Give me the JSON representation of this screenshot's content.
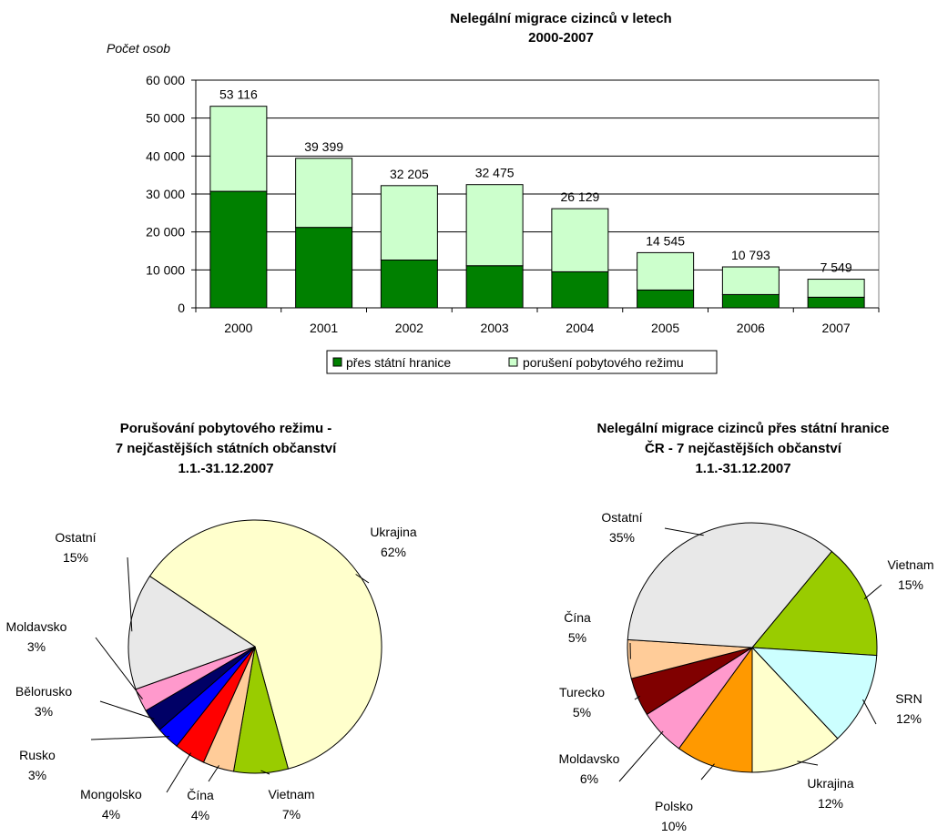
{
  "chart_data": [
    {
      "type": "bar",
      "stacked": true,
      "title": [
        "Nelegální migrace cizinců v letech",
        "2000-2007"
      ],
      "ylabel": "Počet osob",
      "ylim": [
        0,
        60000
      ],
      "yticks": [
        "0",
        "10 000",
        "20 000",
        "30 000",
        "40 000",
        "50 000",
        "60 000"
      ],
      "categories": [
        "2000",
        "2001",
        "2002",
        "2003",
        "2004",
        "2005",
        "2006",
        "2007"
      ],
      "series": [
        {
          "name": "přes státní hranice",
          "color": "#008000",
          "values": [
            30700,
            21200,
            12600,
            11100,
            9500,
            4700,
            3500,
            2800
          ]
        },
        {
          "name": "porušení pobytového režimu",
          "color": "#ccffcc",
          "values": [
            22416,
            18199,
            19605,
            21375,
            16629,
            9845,
            7293,
            4749
          ]
        }
      ],
      "total_labels": [
        "53 116",
        "39 399",
        "32 205",
        "32 475",
        "26 129",
        "14 545",
        "10 793",
        "7 549"
      ],
      "totals": [
        53116,
        39399,
        32205,
        32475,
        26129,
        14545,
        10793,
        7549
      ],
      "legend_placement": "bottom",
      "grid": true
    },
    {
      "type": "pie",
      "title": [
        "Porušování pobytového režimu -",
        "7 nejčastějších státních občanství",
        "1.1.-31.12.2007"
      ],
      "slices": [
        {
          "name": "Ukrajina",
          "pct_label": "62%",
          "value": 62,
          "color": "#ffffcc"
        },
        {
          "name": "Vietnam",
          "pct_label": "7%",
          "value": 7,
          "color": "#99cc00"
        },
        {
          "name": "Čína",
          "pct_label": "4%",
          "value": 4,
          "color": "#ffcc99"
        },
        {
          "name": "Mongolsko",
          "pct_label": "4%",
          "value": 4,
          "color": "#ff0000"
        },
        {
          "name": "Rusko",
          "pct_label": "3%",
          "value": 3,
          "color": "#0000ff"
        },
        {
          "name": "Bělorusko",
          "pct_label": "3%",
          "value": 3,
          "color": "#000066"
        },
        {
          "name": "Moldavsko",
          "pct_label": "3%",
          "value": 3,
          "color": "#ff99cc"
        },
        {
          "name": "Ostatní",
          "pct_label": "15%",
          "value": 15,
          "color": "#e8e8e8"
        }
      ]
    },
    {
      "type": "pie",
      "title": [
        "Nelegální migrace cizinců přes státní hranice",
        "ČR -  7 nejčastějších občanství",
        "1.1.-31.12.2007"
      ],
      "slices": [
        {
          "name": "Vietnam",
          "pct_label": "15%",
          "value": 15,
          "color": "#99cc00"
        },
        {
          "name": "SRN",
          "pct_label": "12%",
          "value": 12,
          "color": "#ccffff"
        },
        {
          "name": "Ukrajina",
          "pct_label": "12%",
          "value": 12,
          "color": "#ffffcc"
        },
        {
          "name": "Polsko",
          "pct_label": "10%",
          "value": 10,
          "color": "#ff9900"
        },
        {
          "name": "Moldavsko",
          "pct_label": "6%",
          "value": 6,
          "color": "#ff99cc"
        },
        {
          "name": "Turecko",
          "pct_label": "5%",
          "value": 5,
          "color": "#800000"
        },
        {
          "name": "Čína",
          "pct_label": "5%",
          "value": 5,
          "color": "#ffcc99"
        },
        {
          "name": "Ostatní",
          "pct_label": "35%",
          "value": 35,
          "color": "#e8e8e8"
        }
      ]
    }
  ]
}
